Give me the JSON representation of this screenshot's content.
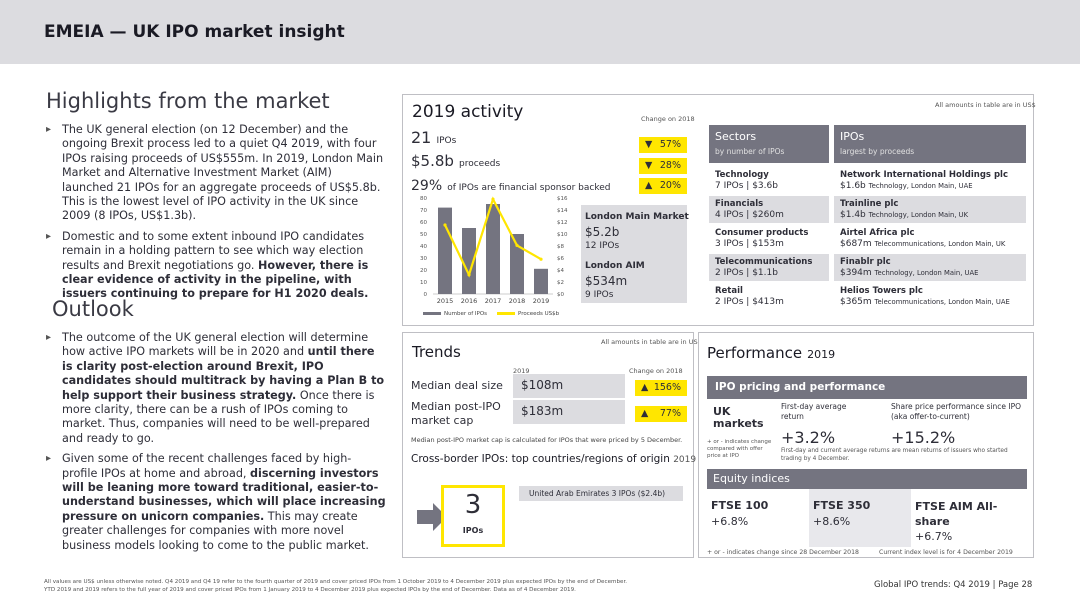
{
  "header": {
    "title": "EMEIA — UK IPO market insight"
  },
  "highlights": {
    "title": "Highlights from the market",
    "bullets": [
      {
        "text": "The UK general election (on 12 December) and the ongoing Brexit process led to a quiet Q4 2019, with four IPOs raising proceeds of US$555m. In 2019, London Main Market and Alternative Investment Market (AIM) launched 21 IPOs for an aggregate proceeds of US$5.8b. This is the lowest level of IPO activity in the UK since 2009 (8 IPOs, US$1.3b)."
      },
      {
        "text": "Domestic and to some extent inbound IPO candidates remain in a holding pattern to see which way election results and Brexit negotiations go. ",
        "bold": "However, there is clear evidence of activity in the pipeline, with issuers continuing to prepare for H1 2020 deals."
      }
    ]
  },
  "outlook": {
    "title": "Outlook",
    "bullets": [
      {
        "text": "The outcome of the UK general election will determine how active IPO markets will be in 2020 and ",
        "bold": "until there is clarity post-election around Brexit, IPO candidates should multitrack by having a Plan B to help support their business strategy.",
        "tail": " Once there is more clarity, there can be a rush of IPOs coming to market. Thus, companies will need to be well-prepared and ready to go."
      },
      {
        "text": "Given some of the recent challenges faced by high-profile IPOs at home and abroad, ",
        "bold": "discerning investors will be leaning more toward traditional, easier-to-understand businesses, which will place increasing pressure on unicorn companies.",
        "tail": " This may create greater challenges for companies with more novel business models looking to come to the public market."
      }
    ]
  },
  "activity": {
    "title": "2019 activity",
    "change_label": "Change on 2018",
    "note": "All amounts in table are in US$",
    "rows": [
      {
        "value": "21",
        "unit": "IPOs",
        "dir": "▼",
        "change": "57%"
      },
      {
        "value": "$5.8b",
        "unit": "proceeds",
        "dir": "▼",
        "change": "28%"
      },
      {
        "value": "29%",
        "unit": "of IPOs are financial sponsor backed",
        "dir": "▲",
        "change": "20%"
      }
    ],
    "main_market": {
      "title": "London Main Market",
      "value": "$5.2b",
      "ipos": "12 IPOs"
    },
    "aim": {
      "title": "London AIM",
      "value": "$534m",
      "ipos": "9 IPOs"
    },
    "sectors": {
      "title": "Sectors",
      "subtitle": "by number of IPOs",
      "items": [
        {
          "name": "Technology",
          "detail": "7 IPOs | $3.6b"
        },
        {
          "name": "Financials",
          "detail": "4 IPOs | $260m"
        },
        {
          "name": "Consumer products",
          "detail": "3 IPOs | $153m"
        },
        {
          "name": "Telecommunications",
          "detail": "2 IPOs | $1.1b"
        },
        {
          "name": "Retail",
          "detail": "2 IPOs | $413m"
        }
      ]
    },
    "ipos": {
      "title": "IPOs",
      "subtitle": "largest by proceeds",
      "items": [
        {
          "name": "Network International Holdings plc",
          "amount": "$1.6b",
          "detail": "Technology, London Main, UAE"
        },
        {
          "name": "Trainline plc",
          "amount": "$1.4b",
          "detail": "Technology, London Main, UK"
        },
        {
          "name": "Airtel Africa plc",
          "amount": "$687m",
          "detail": "Telecommunications, London Main, UK"
        },
        {
          "name": "Finablr plc",
          "amount": "$394m",
          "detail": "Technology, London Main, UAE"
        },
        {
          "name": "Helios Towers plc",
          "amount": "$365m",
          "detail": "Telecommunications, London Main, UAE"
        }
      ]
    }
  },
  "chart_data": {
    "type": "bar",
    "categories": [
      "2015",
      "2016",
      "2017",
      "2018",
      "2019"
    ],
    "series": [
      {
        "name": "Number of IPOs",
        "type": "bar",
        "axis": "left",
        "values": [
          72,
          55,
          75,
          50,
          21
        ]
      },
      {
        "name": "Proceeds US$b",
        "type": "line",
        "axis": "right",
        "values": [
          11.5,
          3.2,
          15.8,
          8.1,
          5.8
        ]
      }
    ],
    "ylim_left": [
      0,
      80
    ],
    "ylim_right": [
      0,
      16
    ],
    "yticks_left": [
      "0",
      "10",
      "20",
      "30",
      "40",
      "50",
      "60",
      "70",
      "80"
    ],
    "yticks_right": [
      "$0",
      "$2",
      "$4",
      "$6",
      "$8",
      "$10",
      "$12",
      "$14",
      "$16"
    ],
    "legend": [
      "Number of IPOs",
      "Proceeds US$b"
    ],
    "colors": {
      "bar": "#747480",
      "line": "#ffe600"
    }
  },
  "trends": {
    "title": "Trends",
    "note": "All amounts in table are in US$",
    "col_year": "2019",
    "col_change": "Change on 2018",
    "rows": [
      {
        "label": "Median deal size",
        "value": "$108m",
        "dir": "▲",
        "change": "156%"
      },
      {
        "label": "Median post-IPO market cap",
        "value": "$183m",
        "dir": "▲",
        "change": "77%"
      }
    ],
    "footnote": "Median post-IPO market cap is calculated for IPOs that were priced by 5 December.",
    "cross_title": "Cross-border IPOs: top countries/regions of origin",
    "cross_year": "2019",
    "cross_count": "3",
    "cross_unit": "IPOs",
    "cross_item": "United Arab Emirates 3 IPOs ($2.4b)"
  },
  "performance": {
    "title": "Performance",
    "year": "2019",
    "pricing_title": "IPO pricing and performance",
    "uk_label": "UK markets",
    "first_day_label": "First-day average return",
    "share_label": "Share price performance since IPO (aka offer-to-current)",
    "first_day_value": "+3.2%",
    "share_value": "+15.2%",
    "legend_note": "+ or - indicates change compared with offer price at IPO",
    "returns_note": "First-day and current average returns are mean returns of issuers who started trading by 4 December.",
    "equity_title": "Equity indices",
    "indices": [
      {
        "name": "FTSE 100",
        "value": "+6.8%"
      },
      {
        "name": "FTSE 350",
        "value": "+8.6%"
      },
      {
        "name": "FTSE AIM All-share",
        "value": "+6.7%"
      }
    ],
    "foot_left": "+ or - indicates change since 28 December 2018",
    "foot_right": "Current index level is for 4 December 2019"
  },
  "footer": {
    "note1": "All values are US$ unless otherwise noted. Q4 2019 and Q4 19 refer to the fourth quarter of 2019 and cover priced IPOs from 1 October 2019 to 4 December 2019 plus expected IPOs by the end of December.",
    "note2": "YTD 2019 and 2019 refers to the full year of 2019 and cover priced IPOs from 1 January 2019 to 4 December 2019 plus expected IPOs by the end of December. Data as of 4 December 2019.",
    "page": "Global IPO trends: Q4 2019  |  Page 28"
  }
}
